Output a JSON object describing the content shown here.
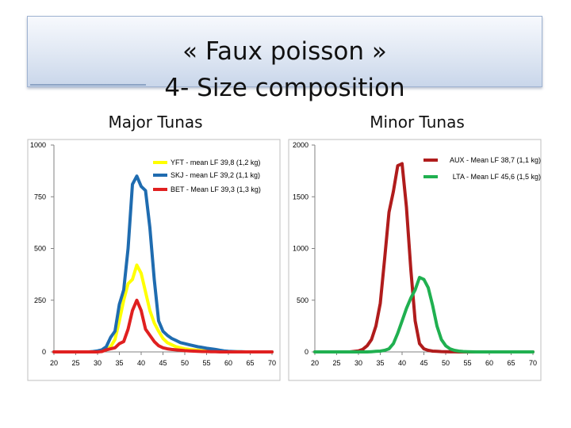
{
  "slide": {
    "title_line_1": "« Faux poisson »",
    "title_line_2": "4- Size composition"
  },
  "chart_data": [
    {
      "type": "line",
      "title": "Major Tunas",
      "xlabel": "",
      "ylabel": "",
      "xlim": [
        20,
        70
      ],
      "ylim": [
        0,
        1000
      ],
      "x_ticks": [
        20,
        25,
        30,
        35,
        40,
        45,
        50,
        55,
        60,
        65,
        70
      ],
      "y_ticks": [
        0,
        250,
        500,
        750,
        1000
      ],
      "grid": false,
      "legend_position": "top-right",
      "series": [
        {
          "name": "YFT - mean LF 39,8 (1,2 kg)",
          "color": "#ffff00",
          "x": [
            20,
            21,
            22,
            23,
            24,
            25,
            26,
            27,
            28,
            29,
            30,
            31,
            32,
            33,
            34,
            35,
            36,
            37,
            38,
            39,
            40,
            41,
            42,
            43,
            44,
            45,
            46,
            47,
            48,
            49,
            50,
            51,
            52,
            53,
            54,
            55,
            56,
            57,
            58,
            59,
            60,
            61,
            62,
            63,
            64,
            65,
            66,
            67,
            68,
            69,
            70
          ],
          "values": [
            0,
            0,
            0,
            0,
            0,
            0,
            0,
            0,
            0,
            0,
            2,
            5,
            10,
            25,
            60,
            150,
            250,
            330,
            350,
            420,
            380,
            290,
            200,
            140,
            100,
            65,
            45,
            35,
            25,
            20,
            15,
            12,
            10,
            8,
            6,
            5,
            4,
            3,
            2,
            2,
            1,
            1,
            1,
            0,
            0,
            0,
            0,
            0,
            0,
            0,
            0
          ]
        },
        {
          "name": "SKJ - mean LF 39,2 (1,1 kg)",
          "color": "#1f6cb0",
          "x": [
            20,
            21,
            22,
            23,
            24,
            25,
            26,
            27,
            28,
            29,
            30,
            31,
            32,
            33,
            34,
            35,
            36,
            37,
            38,
            39,
            40,
            41,
            42,
            43,
            44,
            45,
            46,
            47,
            48,
            49,
            50,
            51,
            52,
            53,
            54,
            55,
            56,
            57,
            58,
            59,
            60,
            61,
            62,
            63,
            64,
            65,
            66,
            67,
            68,
            69,
            70
          ],
          "values": [
            0,
            0,
            0,
            0,
            0,
            0,
            0,
            0,
            0,
            2,
            5,
            10,
            25,
            70,
            100,
            230,
            300,
            500,
            810,
            850,
            800,
            780,
            600,
            350,
            150,
            100,
            80,
            65,
            55,
            45,
            40,
            35,
            30,
            25,
            22,
            18,
            15,
            12,
            8,
            5,
            3,
            2,
            1,
            1,
            0,
            0,
            0,
            0,
            0,
            0,
            0
          ]
        },
        {
          "name": "BET - Mean LF 39,3 (1,3 kg)",
          "color": "#e02020",
          "x": [
            20,
            21,
            22,
            23,
            24,
            25,
            26,
            27,
            28,
            29,
            30,
            31,
            32,
            33,
            34,
            35,
            36,
            37,
            38,
            39,
            40,
            41,
            42,
            43,
            44,
            45,
            46,
            47,
            48,
            49,
            50,
            51,
            52,
            53,
            54,
            55,
            56,
            57,
            58,
            59,
            60,
            61,
            62,
            63,
            64,
            65,
            66,
            67,
            68,
            69,
            70
          ],
          "values": [
            0,
            0,
            0,
            0,
            0,
            0,
            0,
            0,
            0,
            0,
            0,
            2,
            10,
            15,
            20,
            40,
            50,
            110,
            200,
            250,
            200,
            110,
            80,
            50,
            30,
            20,
            15,
            12,
            10,
            8,
            6,
            5,
            4,
            3,
            2,
            2,
            1,
            1,
            0,
            0,
            0,
            0,
            0,
            0,
            0,
            0,
            0,
            0,
            0,
            0,
            0
          ]
        }
      ]
    },
    {
      "type": "line",
      "title": "Minor Tunas",
      "xlabel": "",
      "ylabel": "",
      "xlim": [
        20,
        70
      ],
      "ylim": [
        0,
        2000
      ],
      "x_ticks": [
        20,
        25,
        30,
        35,
        40,
        45,
        50,
        55,
        60,
        65,
        70
      ],
      "y_ticks": [
        0,
        500,
        1000,
        1500,
        2000
      ],
      "grid": false,
      "legend_position": "top-right",
      "series": [
        {
          "name": "AUX - Mean LF 38,7 (1,1 kg)",
          "color": "#b01c1c",
          "x": [
            20,
            21,
            22,
            23,
            24,
            25,
            26,
            27,
            28,
            29,
            30,
            31,
            32,
            33,
            34,
            35,
            36,
            37,
            38,
            39,
            40,
            41,
            42,
            43,
            44,
            45,
            46,
            47,
            48,
            49,
            50,
            51,
            52,
            53,
            54,
            55,
            56,
            57,
            58,
            59,
            60,
            61,
            62,
            63,
            64,
            65,
            66,
            67,
            68,
            69,
            70
          ],
          "values": [
            0,
            0,
            0,
            0,
            0,
            0,
            0,
            0,
            0,
            5,
            10,
            25,
            60,
            120,
            250,
            470,
            900,
            1350,
            1550,
            1800,
            1820,
            1400,
            800,
            300,
            80,
            30,
            15,
            8,
            5,
            3,
            2,
            1,
            1,
            0,
            0,
            0,
            0,
            0,
            0,
            0,
            0,
            0,
            0,
            0,
            0,
            0,
            0,
            0,
            0,
            0,
            0
          ]
        },
        {
          "name": "LTA - Mean LF 45,6 (1,5 kg)",
          "color": "#20b050",
          "x": [
            20,
            21,
            22,
            23,
            24,
            25,
            26,
            27,
            28,
            29,
            30,
            31,
            32,
            33,
            34,
            35,
            36,
            37,
            38,
            39,
            40,
            41,
            42,
            43,
            44,
            45,
            46,
            47,
            48,
            49,
            50,
            51,
            52,
            53,
            54,
            55,
            56,
            57,
            58,
            59,
            60,
            61,
            62,
            63,
            64,
            65,
            66,
            67,
            68,
            69,
            70
          ],
          "values": [
            0,
            0,
            0,
            0,
            0,
            0,
            0,
            0,
            0,
            0,
            0,
            0,
            0,
            2,
            5,
            8,
            15,
            30,
            80,
            180,
            300,
            420,
            520,
            600,
            720,
            700,
            620,
            450,
            250,
            120,
            60,
            30,
            15,
            8,
            4,
            2,
            1,
            0,
            0,
            0,
            0,
            0,
            0,
            0,
            0,
            0,
            0,
            0,
            0,
            0,
            0
          ]
        }
      ]
    }
  ]
}
